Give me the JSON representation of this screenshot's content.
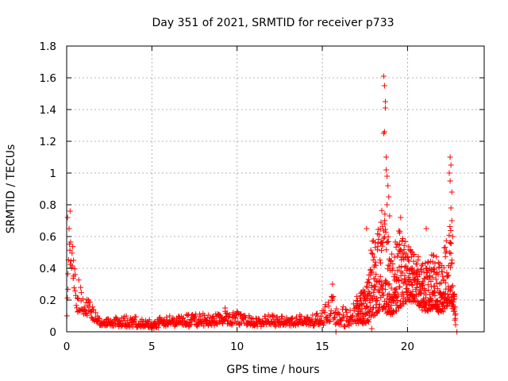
{
  "chart_data": {
    "type": "scatter",
    "title": "Day 351 of 2021, SRMTID for receiver p733",
    "xlabel": "GPS time / hours",
    "ylabel": "SRMTID / TECUs",
    "xlim": [
      0,
      24.5
    ],
    "ylim": [
      0,
      1.8
    ],
    "x_ticks": [
      0,
      5,
      10,
      15,
      20
    ],
    "x_tick_labels": [
      "0",
      "5",
      "10",
      "15",
      "20"
    ],
    "y_ticks": [
      0,
      0.2,
      0.4,
      0.6,
      0.8,
      1,
      1.2,
      1.4,
      1.6,
      1.8
    ],
    "y_tick_labels": [
      "0",
      "0.2",
      "0.4",
      "0.6",
      "0.8",
      "1",
      "1.2",
      "1.4",
      "1.6",
      "1.8"
    ],
    "grid": true,
    "marker": "plus",
    "series": [
      {
        "name": "SRMTID",
        "color": "#ff0000",
        "profile": [
          {
            "t": 0.0,
            "base": 0.1,
            "spread": 0.55
          },
          {
            "t": 0.15,
            "base": 0.45,
            "spread": 0.3
          },
          {
            "t": 0.35,
            "base": 0.35,
            "spread": 0.35
          },
          {
            "t": 0.6,
            "base": 0.12,
            "spread": 0.25
          },
          {
            "t": 1.0,
            "base": 0.12,
            "spread": 0.13
          },
          {
            "t": 1.5,
            "base": 0.08,
            "spread": 0.08
          },
          {
            "t": 2.0,
            "base": 0.04,
            "spread": 0.03
          },
          {
            "t": 3.0,
            "base": 0.04,
            "spread": 0.05
          },
          {
            "t": 4.0,
            "base": 0.03,
            "spread": 0.06
          },
          {
            "t": 5.0,
            "base": 0.03,
            "spread": 0.04
          },
          {
            "t": 6.0,
            "base": 0.04,
            "spread": 0.06
          },
          {
            "t": 7.0,
            "base": 0.04,
            "spread": 0.07
          },
          {
            "t": 8.0,
            "base": 0.04,
            "spread": 0.07
          },
          {
            "t": 9.0,
            "base": 0.05,
            "spread": 0.08
          },
          {
            "t": 10.0,
            "base": 0.05,
            "spread": 0.08
          },
          {
            "t": 11.0,
            "base": 0.04,
            "spread": 0.06
          },
          {
            "t": 12.0,
            "base": 0.04,
            "spread": 0.06
          },
          {
            "t": 13.0,
            "base": 0.04,
            "spread": 0.06
          },
          {
            "t": 14.0,
            "base": 0.04,
            "spread": 0.06
          },
          {
            "t": 15.0,
            "base": 0.05,
            "spread": 0.08
          },
          {
            "t": 15.5,
            "base": 0.06,
            "spread": 0.18
          },
          {
            "t": 16.0,
            "base": 0.05,
            "spread": 0.1
          },
          {
            "t": 16.5,
            "base": 0.03,
            "spread": 0.12
          },
          {
            "t": 17.0,
            "base": 0.06,
            "spread": 0.2
          },
          {
            "t": 17.5,
            "base": 0.05,
            "spread": 0.22
          },
          {
            "t": 18.0,
            "base": 0.1,
            "spread": 0.55
          },
          {
            "t": 18.5,
            "base": 0.15,
            "spread": 0.7
          },
          {
            "t": 19.0,
            "base": 0.1,
            "spread": 0.4
          },
          {
            "t": 19.5,
            "base": 0.15,
            "spread": 0.5
          },
          {
            "t": 20.0,
            "base": 0.2,
            "spread": 0.35
          },
          {
            "t": 20.5,
            "base": 0.18,
            "spread": 0.3
          },
          {
            "t": 21.0,
            "base": 0.12,
            "spread": 0.3
          },
          {
            "t": 21.5,
            "base": 0.15,
            "spread": 0.35
          },
          {
            "t": 22.0,
            "base": 0.12,
            "spread": 0.35
          },
          {
            "t": 22.5,
            "base": 0.2,
            "spread": 0.5
          },
          {
            "t": 22.8,
            "base": 0.05,
            "spread": 0.1
          }
        ],
        "peaks": [
          {
            "x": 0.2,
            "y": 0.76
          },
          {
            "x": 0.05,
            "y": 0.72
          },
          {
            "x": 0.4,
            "y": 0.45
          },
          {
            "x": 18.6,
            "y": 1.61
          },
          {
            "x": 18.65,
            "y": 1.55
          },
          {
            "x": 18.7,
            "y": 1.45
          },
          {
            "x": 18.7,
            "y": 1.41
          },
          {
            "x": 18.65,
            "y": 1.26
          },
          {
            "x": 18.6,
            "y": 1.25
          },
          {
            "x": 18.75,
            "y": 1.1
          },
          {
            "x": 18.75,
            "y": 1.02
          },
          {
            "x": 18.8,
            "y": 0.98
          },
          {
            "x": 18.85,
            "y": 0.92
          },
          {
            "x": 18.9,
            "y": 0.85
          },
          {
            "x": 18.8,
            "y": 0.8
          },
          {
            "x": 18.95,
            "y": 0.73
          },
          {
            "x": 17.6,
            "y": 0.65
          },
          {
            "x": 19.6,
            "y": 0.72
          },
          {
            "x": 21.1,
            "y": 0.65
          },
          {
            "x": 22.5,
            "y": 1.1
          },
          {
            "x": 22.55,
            "y": 1.05
          },
          {
            "x": 22.45,
            "y": 1.0
          },
          {
            "x": 22.5,
            "y": 0.95
          },
          {
            "x": 22.6,
            "y": 0.88
          },
          {
            "x": 22.55,
            "y": 0.78
          },
          {
            "x": 22.6,
            "y": 0.7
          },
          {
            "x": 22.65,
            "y": 0.6
          },
          {
            "x": 15.6,
            "y": 0.3
          },
          {
            "x": 9.3,
            "y": 0.15
          },
          {
            "x": 22.9,
            "y": 0.0
          },
          {
            "x": 15.8,
            "y": 0.0
          },
          {
            "x": 17.9,
            "y": 0.02
          }
        ]
      }
    ]
  }
}
